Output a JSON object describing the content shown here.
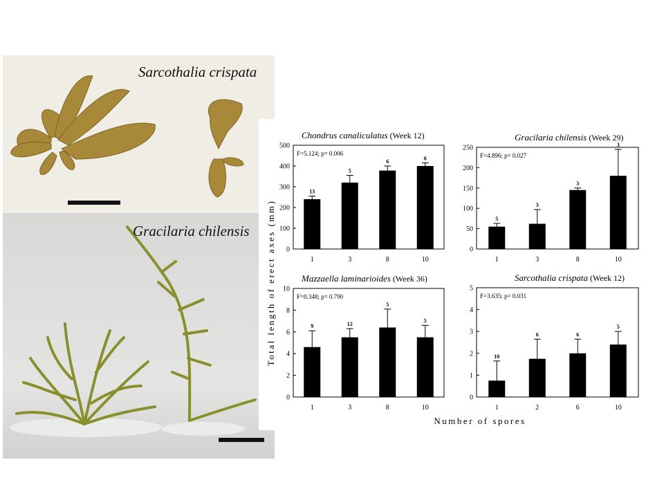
{
  "photos": {
    "top_caption": "Sarcothalia crispata",
    "bottom_caption": "Gracilaria chilensis"
  },
  "figure": {
    "ylabel": "Total length of erect axes (mm)",
    "xlabel": "Number of spores"
  },
  "colors": {
    "bar": "#000000",
    "photo_top_bg": "#efede4",
    "photo_bottom_bg": "#dcdddb",
    "alga_top": "#a8893a",
    "alga_bottom": "#8a8f2e"
  },
  "chart_data": [
    {
      "type": "bar",
      "title": "Chondrus canaliculatus",
      "title_suffix": "(Week 12)",
      "stats": "F=5.124; p= 0.006",
      "categories": [
        "1",
        "3",
        "8",
        "10"
      ],
      "values": [
        240,
        320,
        378,
        400
      ],
      "errors": [
        15,
        35,
        22,
        15
      ],
      "n_labels": [
        "13",
        "5",
        "6",
        "6"
      ],
      "ylim": [
        0,
        500
      ],
      "yticks": [
        0,
        100,
        200,
        300,
        400,
        500
      ]
    },
    {
      "type": "bar",
      "title": "Gracilaria chilensis",
      "title_suffix": "(Week 29)",
      "stats": "F=4.896; p= 0.027",
      "categories": [
        "1",
        "3",
        "8",
        "10"
      ],
      "values": [
        55,
        62,
        145,
        180
      ],
      "errors": [
        8,
        35,
        5,
        65
      ],
      "n_labels": [
        "5",
        "3",
        "3",
        "3"
      ],
      "ylim": [
        0,
        250
      ],
      "yticks": [
        0,
        50,
        100,
        150,
        200,
        250
      ]
    },
    {
      "type": "bar",
      "title": "Mazzaella laminarioides",
      "title_suffix": "(Week 36)",
      "stats": "F=0.348; p= 0.790",
      "categories": [
        "1",
        "3",
        "8",
        "10"
      ],
      "values": [
        4.6,
        5.5,
        6.4,
        5.5
      ],
      "errors": [
        1.5,
        0.8,
        1.7,
        1.1
      ],
      "n_labels": [
        "9",
        "12",
        "5",
        "5"
      ],
      "ylim": [
        0,
        10
      ],
      "yticks": [
        0,
        2,
        4,
        6,
        8,
        10
      ]
    },
    {
      "type": "bar",
      "title": "Sarcothalia crispata",
      "title_suffix": "(Week 12)",
      "stats": "F=3.635; p= 0.031",
      "categories": [
        "1",
        "2",
        "6",
        "10"
      ],
      "values": [
        0.75,
        1.75,
        2.0,
        2.4
      ],
      "errors": [
        0.9,
        0.9,
        0.65,
        0.6
      ],
      "n_labels": [
        "10",
        "6",
        "6",
        "5"
      ],
      "ylim": [
        0,
        5
      ],
      "yticks": [
        0,
        1,
        2,
        3,
        4,
        5
      ]
    }
  ]
}
